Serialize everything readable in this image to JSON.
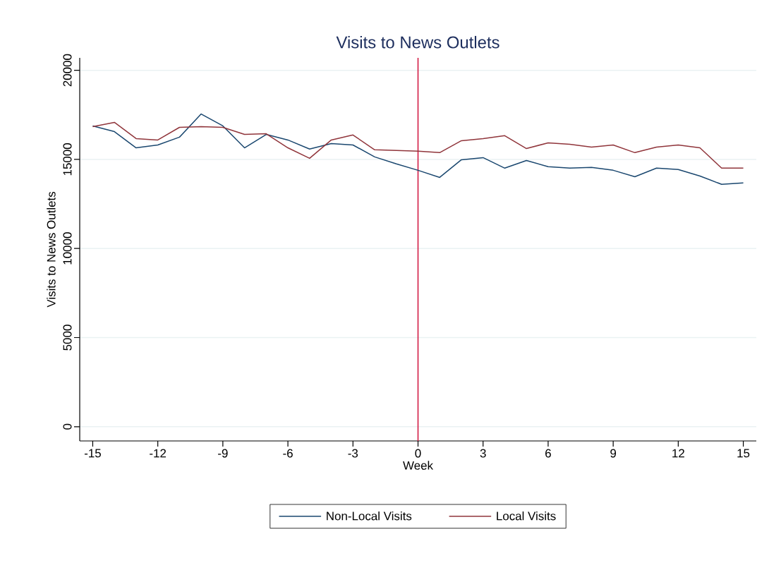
{
  "chart_data": {
    "type": "line",
    "title": "Visits to News Outlets",
    "xlabel": "Week",
    "ylabel": "Visits to News Outlets",
    "x": [
      -15,
      -14,
      -13,
      -12,
      -11,
      -10,
      -9,
      -8,
      -7,
      -6,
      -5,
      -4,
      -3,
      -2,
      -1,
      0,
      1,
      2,
      3,
      4,
      5,
      6,
      7,
      8,
      9,
      10,
      11,
      12,
      13,
      14,
      15
    ],
    "series": [
      {
        "name": "Non-Local Visits",
        "color": "#1a476f",
        "values": [
          16880,
          16560,
          15650,
          15810,
          16250,
          17550,
          16880,
          15650,
          16400,
          16090,
          15580,
          15890,
          15810,
          15140,
          14750,
          14390,
          13990,
          14980,
          15100,
          14510,
          14940,
          14590,
          14510,
          14550,
          14390,
          14030,
          14510,
          14430,
          14070,
          13600,
          13680
        ]
      },
      {
        "name": "Local Visits",
        "color": "#90353b",
        "values": [
          16840,
          17080,
          16170,
          16090,
          16800,
          16840,
          16800,
          16400,
          16440,
          15650,
          15060,
          16090,
          16370,
          15540,
          15500,
          15460,
          15380,
          16050,
          16170,
          16330,
          15610,
          15930,
          15850,
          15690,
          15810,
          15380,
          15690,
          15810,
          15650,
          14510,
          14510
        ]
      }
    ],
    "xlim": [
      -15.6,
      15.6
    ],
    "ylim": [
      -800,
      20700
    ],
    "xticks": [
      -15,
      -12,
      -9,
      -6,
      -3,
      0,
      3,
      6,
      9,
      12,
      15
    ],
    "yticks": [
      0,
      5000,
      10000,
      15000,
      20000
    ],
    "ref_lines": [
      {
        "axis": "x",
        "value": 0,
        "color": "#d0103a"
      }
    ],
    "grid": "y",
    "legend": "bottom",
    "marker": "none",
    "line_style": "solid"
  }
}
